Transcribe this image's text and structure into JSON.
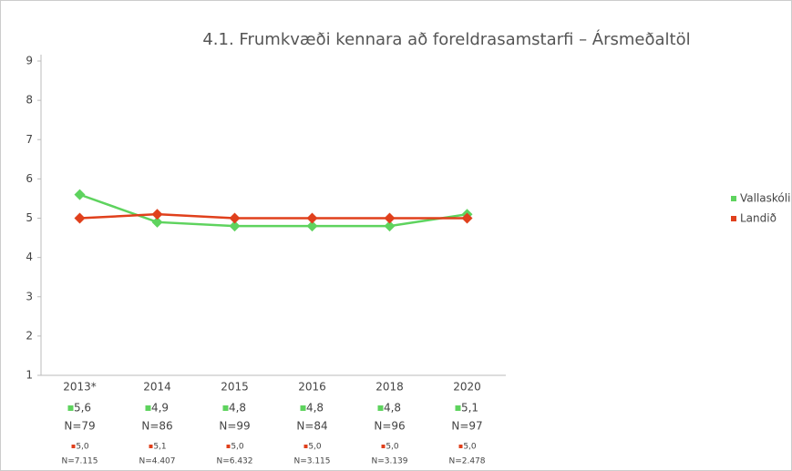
{
  "chart_data": {
    "type": "line",
    "title": "4.1. Frumkvæði kennara að foreldrasamstarfi – Ársmeðaltöl",
    "categories": [
      "2013*",
      "2014",
      "2015",
      "2016",
      "2018",
      "2020"
    ],
    "series": [
      {
        "name": "Vallaskóli",
        "color": "#5ed35e",
        "values": [
          5.6,
          4.9,
          4.8,
          4.8,
          4.8,
          5.1
        ],
        "value_labels": [
          "5,6",
          "4,9",
          "4,8",
          "4,8",
          "4,8",
          "5,1"
        ],
        "n_labels": [
          "N=79",
          "N=86",
          "N=99",
          "N=84",
          "N=96",
          "N=97"
        ]
      },
      {
        "name": "Landið",
        "color": "#e0401c",
        "values": [
          5.0,
          5.1,
          5.0,
          5.0,
          5.0,
          5.0
        ],
        "value_labels": [
          "5,0",
          "5,1",
          "5,0",
          "5,0",
          "5,0",
          "5,0"
        ],
        "n_labels": [
          "N=7.115",
          "N=4.407",
          "N=6.432",
          "N=3.115",
          "N=3.139",
          "N=2.478"
        ]
      }
    ],
    "ylim": [
      1,
      9
    ],
    "yticks": [
      1,
      2,
      3,
      4,
      5,
      6,
      7,
      8,
      9
    ],
    "grid": false,
    "legend": "right"
  }
}
